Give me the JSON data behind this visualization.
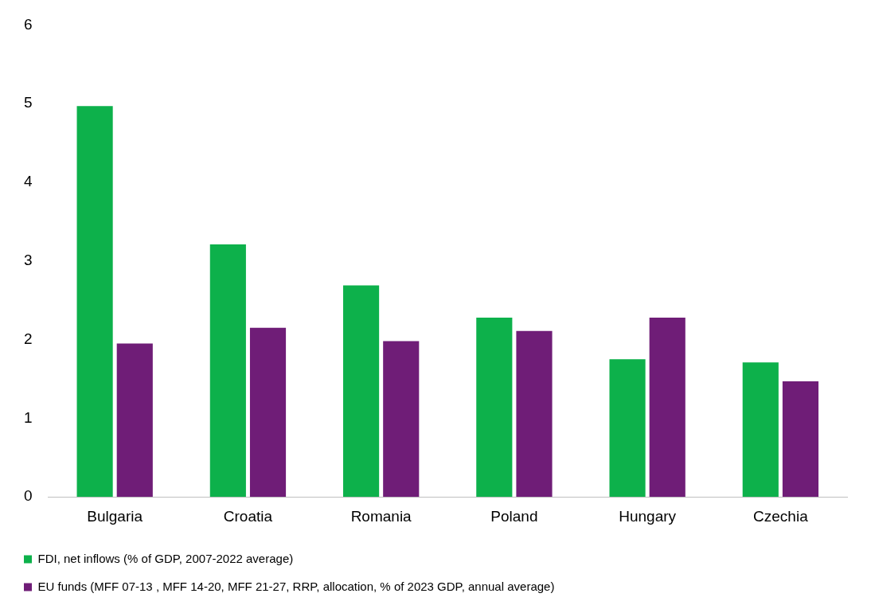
{
  "chart_data": {
    "type": "bar",
    "categories": [
      "Bulgaria",
      "Croatia",
      "Romania",
      "Poland",
      "Hungary",
      "Czechia"
    ],
    "series": [
      {
        "name": "FDI, net inflows (% of GDP, 2007-2022 average)",
        "color": "#0db14b",
        "values": [
          4.97,
          3.21,
          2.69,
          2.28,
          1.75,
          1.71
        ]
      },
      {
        "name": "EU funds (MFF 07-13 , MFF 14-20, MFF 21-27, RRP, allocation, % of 2023 GDP, annual average)",
        "color": "#6f1d77",
        "values": [
          1.95,
          2.15,
          1.98,
          2.11,
          2.28,
          1.47
        ]
      }
    ],
    "ylim": [
      0,
      6
    ],
    "yticks": [
      0,
      1,
      2,
      3,
      4,
      5,
      6
    ],
    "grid": false,
    "legend": "bottom"
  }
}
